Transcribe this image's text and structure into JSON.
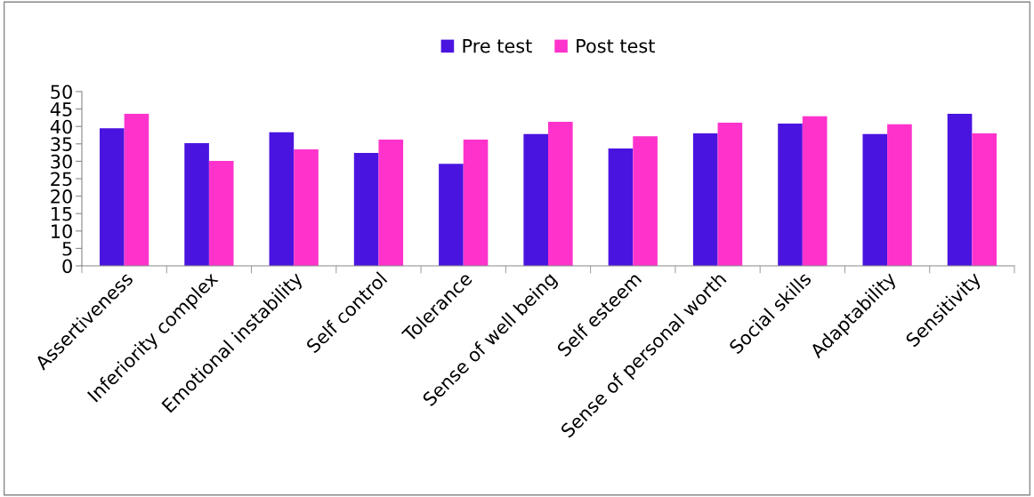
{
  "chart_data": {
    "type": "bar",
    "categories": [
      "Assertiveness",
      "Inferiority complex",
      "Emotional instability",
      "Self control",
      "Tolerance",
      "Sense of well being",
      "Self esteem",
      "Sense of personal worth",
      "Social skills",
      "Adaptability",
      "Sensitivity"
    ],
    "series": [
      {
        "name": "Pre test",
        "color": "#4a14e0",
        "values": [
          39.5,
          35.2,
          38.3,
          32.4,
          29.3,
          37.8,
          33.7,
          38.0,
          40.8,
          37.8,
          43.6
        ]
      },
      {
        "name": "Post test",
        "color": "#ff33cc",
        "values": [
          43.6,
          30.1,
          33.4,
          36.2,
          36.2,
          41.3,
          37.2,
          41.1,
          42.9,
          40.6,
          38.0
        ]
      }
    ],
    "ylim": [
      0,
      50
    ],
    "yticks": [
      0,
      5,
      10,
      15,
      20,
      25,
      30,
      35,
      40,
      45,
      50
    ],
    "grid": false,
    "legend": "top"
  }
}
